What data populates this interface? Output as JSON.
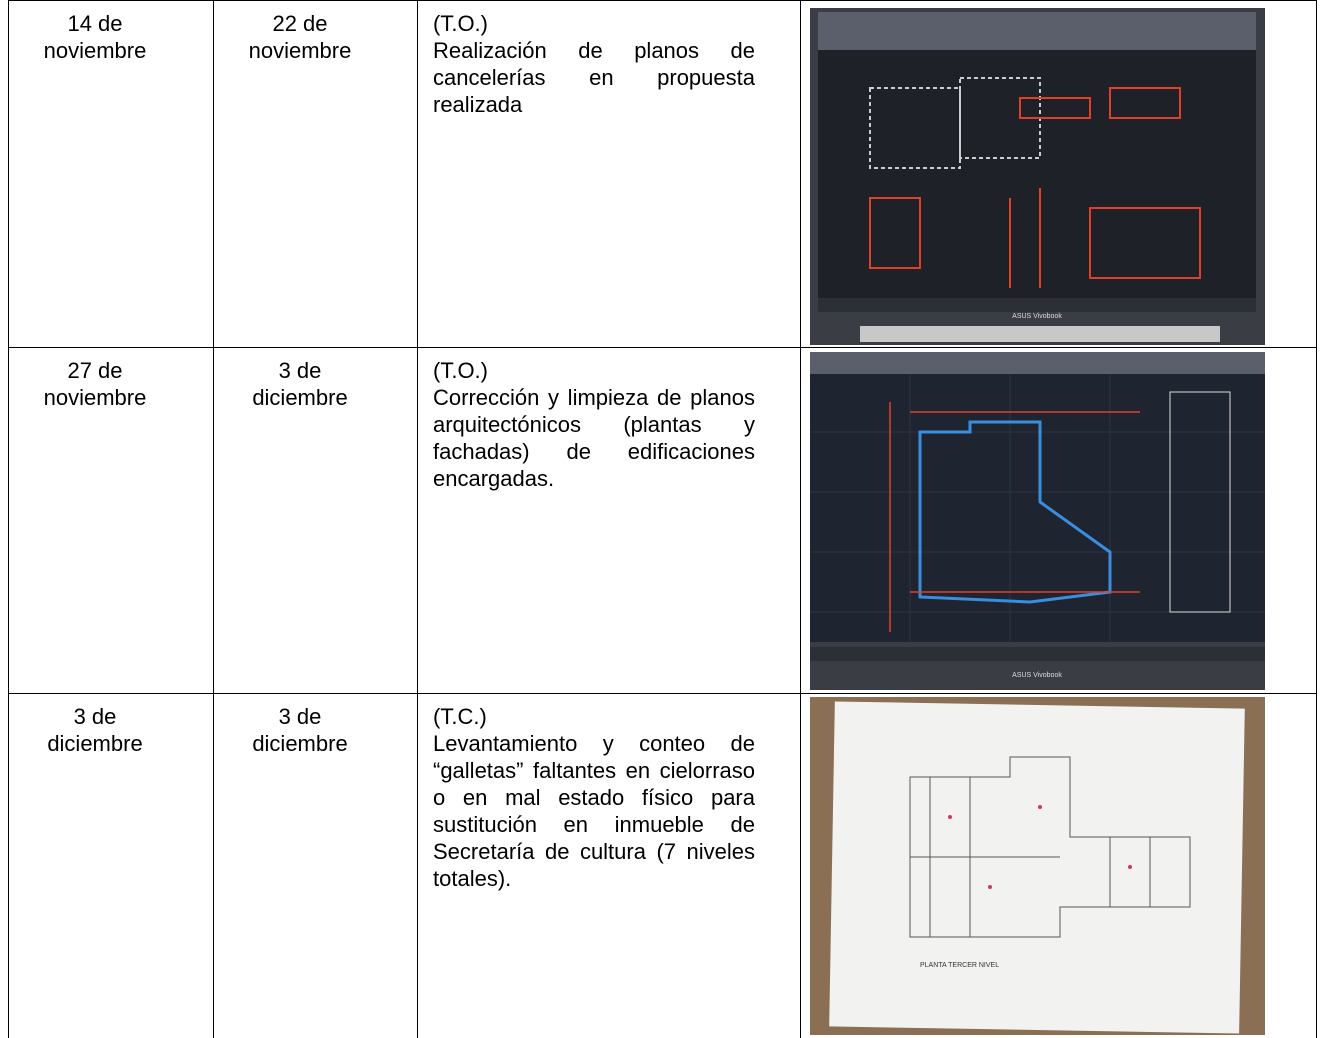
{
  "table": {
    "rows": [
      {
        "start": "14 de noviembre",
        "end": "22 de noviembre",
        "tag": "(T.O.)",
        "description": "Realización de planos de cancelerías en propuesta realizada",
        "photo_text": "ASUS Vivobook"
      },
      {
        "start": "27 de noviembre",
        "end": "3 de diciembre",
        "tag": "(T.O.)",
        "description": "Corrección y limpieza de planos arquitectónicos (plantas y fachadas) de edificaciones encargadas.",
        "photo_text": "ASUS Vivobook"
      },
      {
        "start": "3 de diciembre",
        "end": "3 de diciembre",
        "tag": "(T.C.)",
        "description": "Levantamiento y conteo de “galletas” faltantes en cielorraso o en mal estado físico para sustitución en inmueble de Secretaría de cultura (7 niveles totales).",
        "photo_text": "PLANTA TERCER NIVEL"
      }
    ]
  }
}
